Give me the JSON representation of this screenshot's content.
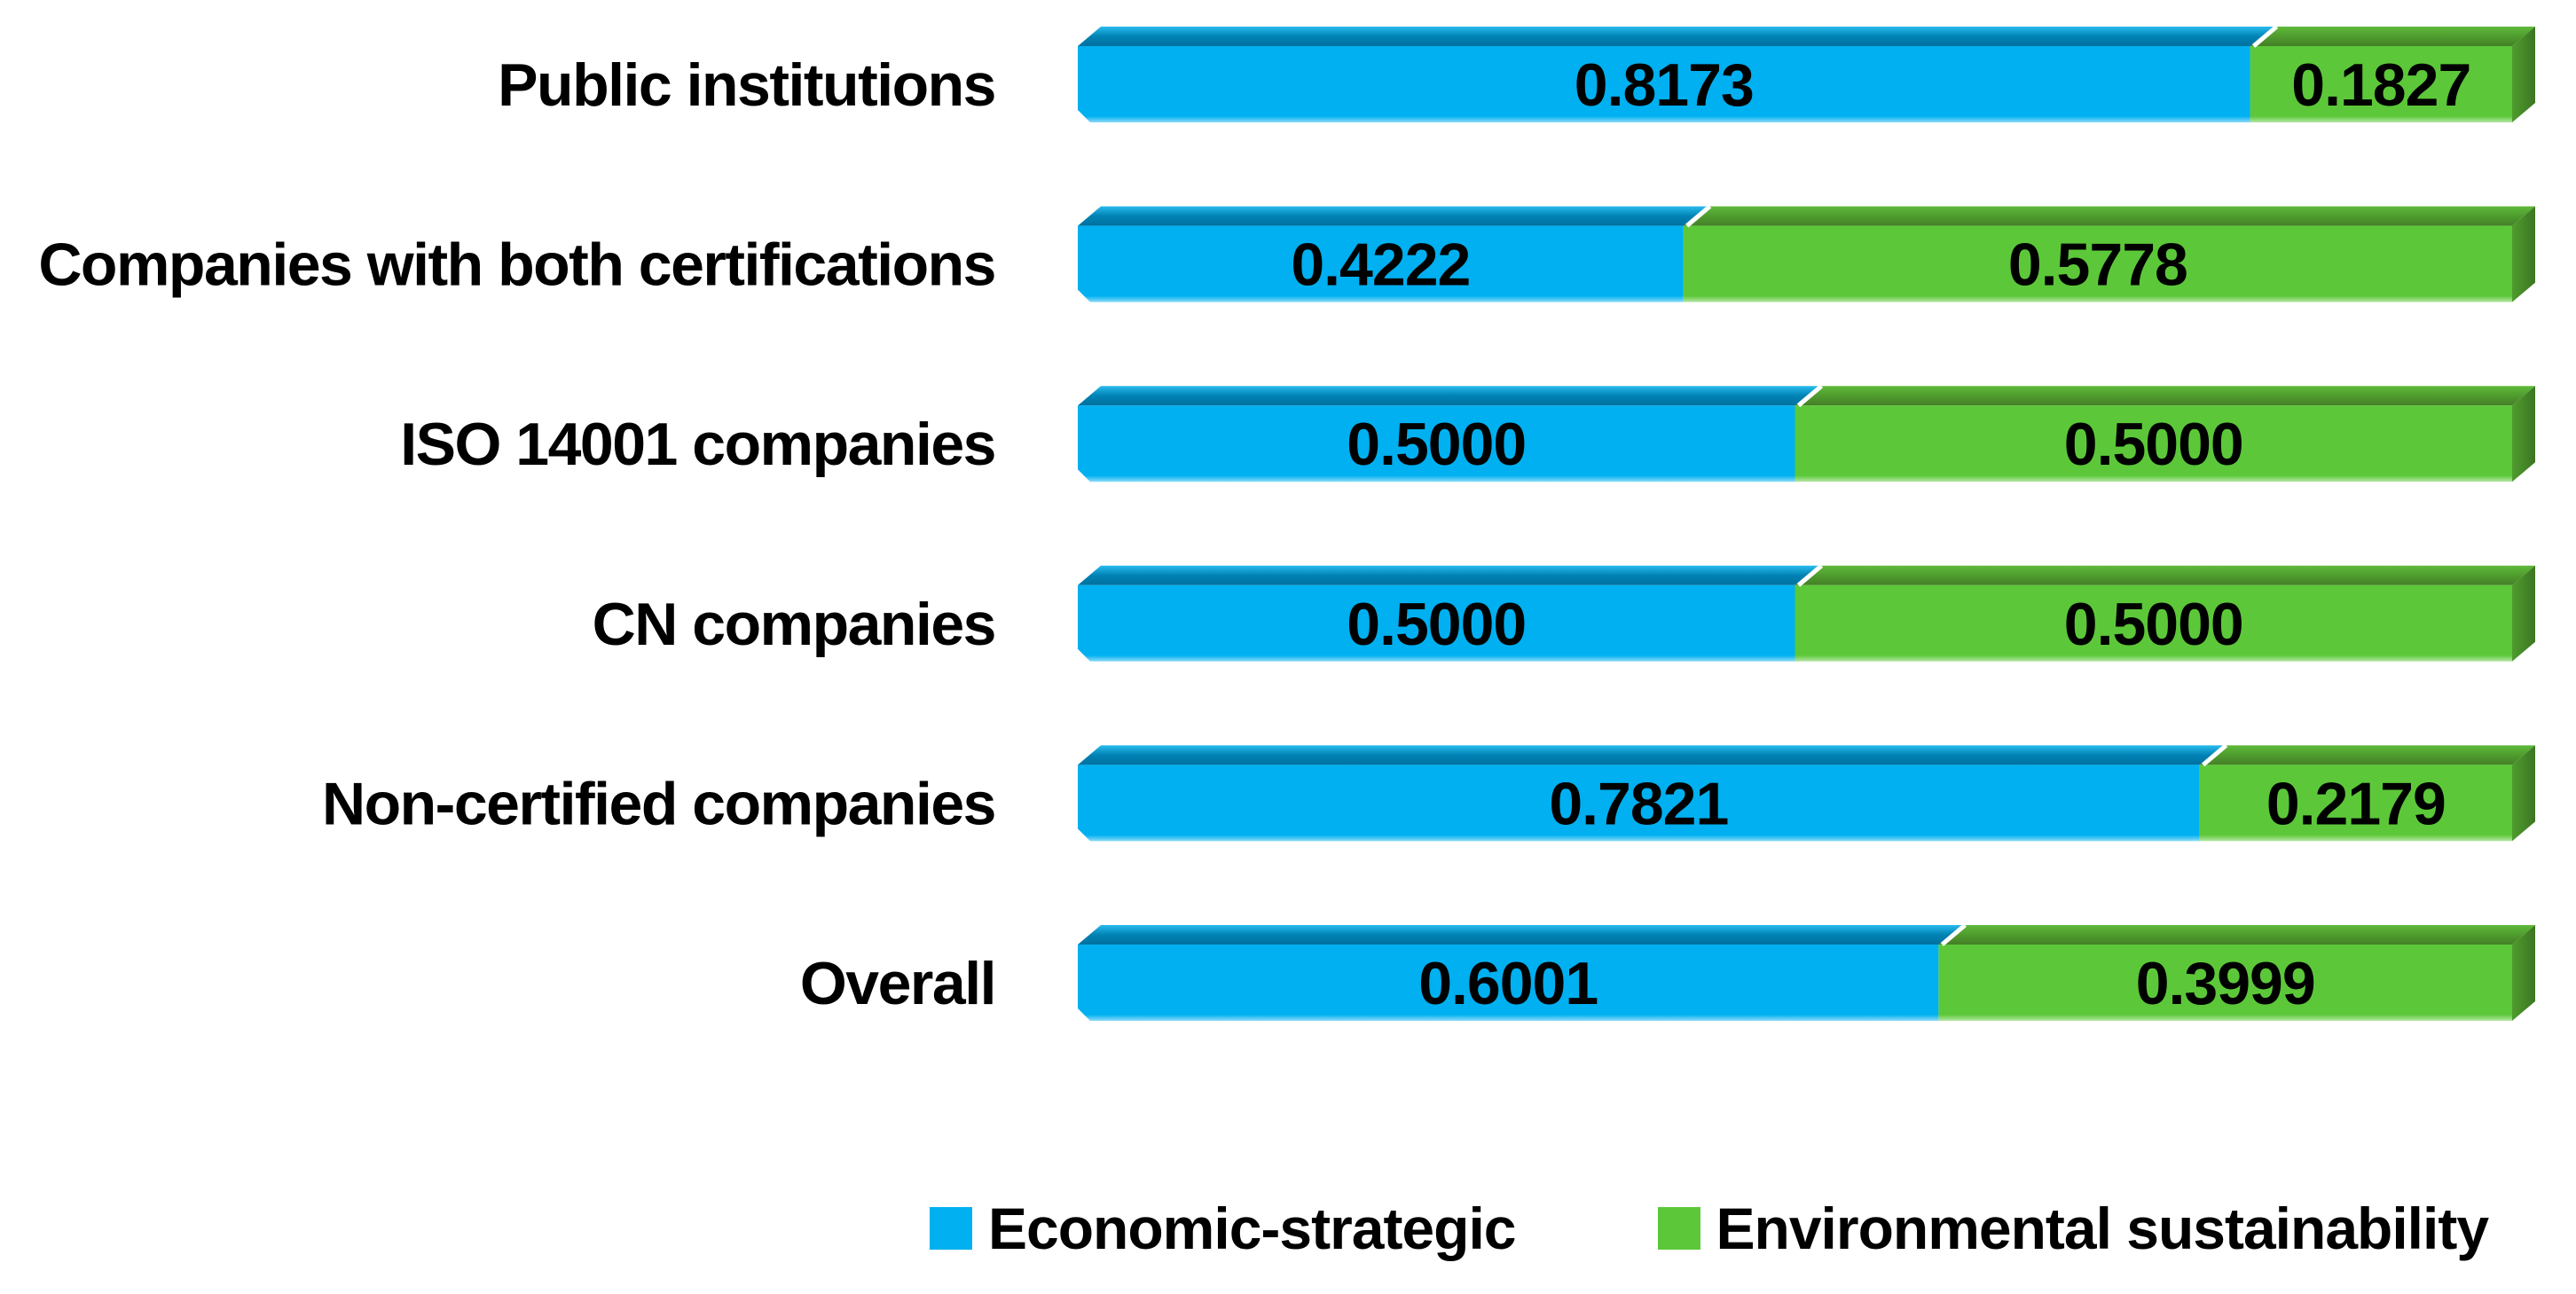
{
  "chart_data": {
    "type": "bar",
    "orientation": "horizontal",
    "stacked": true,
    "title": "",
    "grid": false,
    "background": "#FFFFFF",
    "text_color": "#000000",
    "xlim": [
      0,
      1
    ],
    "legend_position": "bottom",
    "categories": [
      "Public institutions",
      "Companies with both certifications",
      "ISO 14001 companies",
      "CN companies",
      "Non-certified companies",
      "Overall"
    ],
    "series": [
      {
        "name": "Economic-strategic",
        "color": "#00B0F0",
        "top_gradient": [
          "#29BCEF",
          "#0082B4",
          "#00719F"
        ],
        "values": [
          0.8173,
          0.4222,
          0.5,
          0.5,
          0.7821,
          0.6001
        ]
      },
      {
        "name": "Environmental sustainability",
        "color": "#5CC839",
        "top_gradient": [
          "#5FB93B",
          "#4F9C2E",
          "#447F27"
        ],
        "side_gradient": [
          "#4F9C2E",
          "#3C7522"
        ],
        "values": [
          0.1827,
          0.5778,
          0.5,
          0.5,
          0.2179,
          0.3999
        ]
      }
    ],
    "value_labels": [
      [
        "0.8173",
        "0.1827"
      ],
      [
        "0.4222",
        "0.5778"
      ],
      [
        "0.5000",
        "0.5000"
      ],
      [
        "0.5000",
        "0.5000"
      ],
      [
        "0.7821",
        "0.2179"
      ],
      [
        "0.6001",
        "0.3999"
      ]
    ]
  }
}
